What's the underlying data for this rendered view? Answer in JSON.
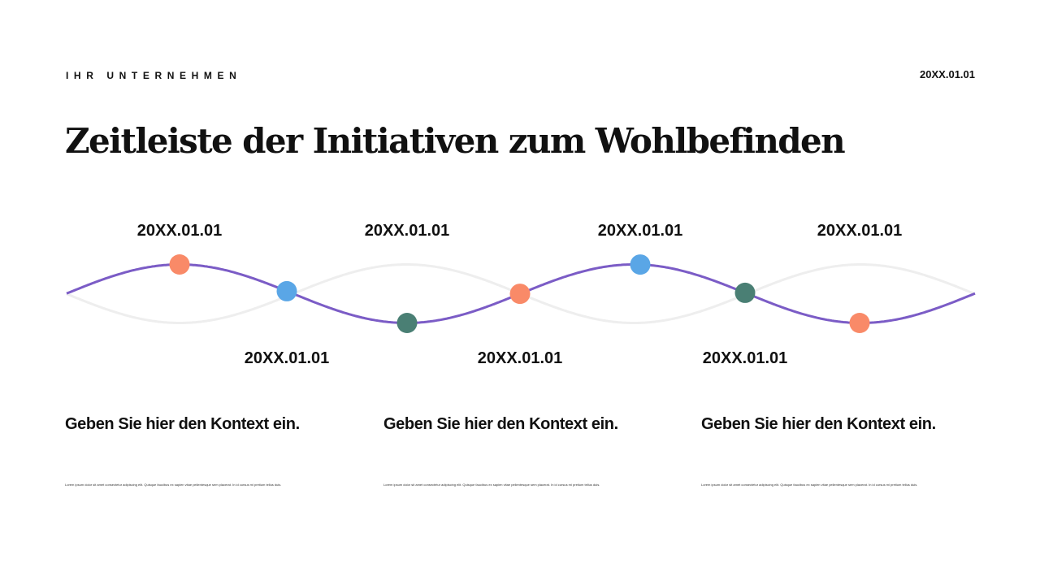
{
  "header": {
    "company": "IHR UNTERNEHMEN",
    "date": "20XX.01.01"
  },
  "title": "Zeitleiste der Initiativen zum Wohlbefinden",
  "timeline": {
    "line_color": "#7b5cc6",
    "ghost_color": "#eeeeee",
    "milestones": [
      {
        "date": "20XX.01.01",
        "position": "top",
        "color": "#f98a68"
      },
      {
        "date": "20XX.01.01",
        "position": "bottom",
        "color": "#5aa6e6"
      },
      {
        "date": "20XX.01.01",
        "position": "top",
        "color": "#4a7f74"
      },
      {
        "date": "20XX.01.01",
        "position": "bottom",
        "color": "#f98a68"
      },
      {
        "date": "20XX.01.01",
        "position": "top",
        "color": "#5aa6e6"
      },
      {
        "date": "20XX.01.01",
        "position": "bottom",
        "color": "#4a7f74"
      },
      {
        "date": "20XX.01.01",
        "position": "top",
        "color": "#f98a68"
      }
    ]
  },
  "columns": [
    {
      "heading": "Geben Sie hier den Kontext ein.",
      "body": "Lorem ipsum dolor sit amet consectetur adipiscing elit. Quisque faucibus ex sapien vitae pellentesque sem placerat. In id cursus mi pretium tellus duis."
    },
    {
      "heading": "Geben Sie hier den Kontext ein.",
      "body": "Lorem ipsum dolor sit amet consectetur adipiscing elit. Quisque faucibus ex sapien vitae pellentesque sem placerat. In id cursus mi pretium tellus duis."
    },
    {
      "heading": "Geben Sie hier den Kontext ein.",
      "body": "Lorem ipsum dolor sit amet consectetur adipiscing elit. Quisque faucibus ex sapien vitae pellentesque sem placerat. In id cursus mi pretium tellus duis."
    }
  ]
}
